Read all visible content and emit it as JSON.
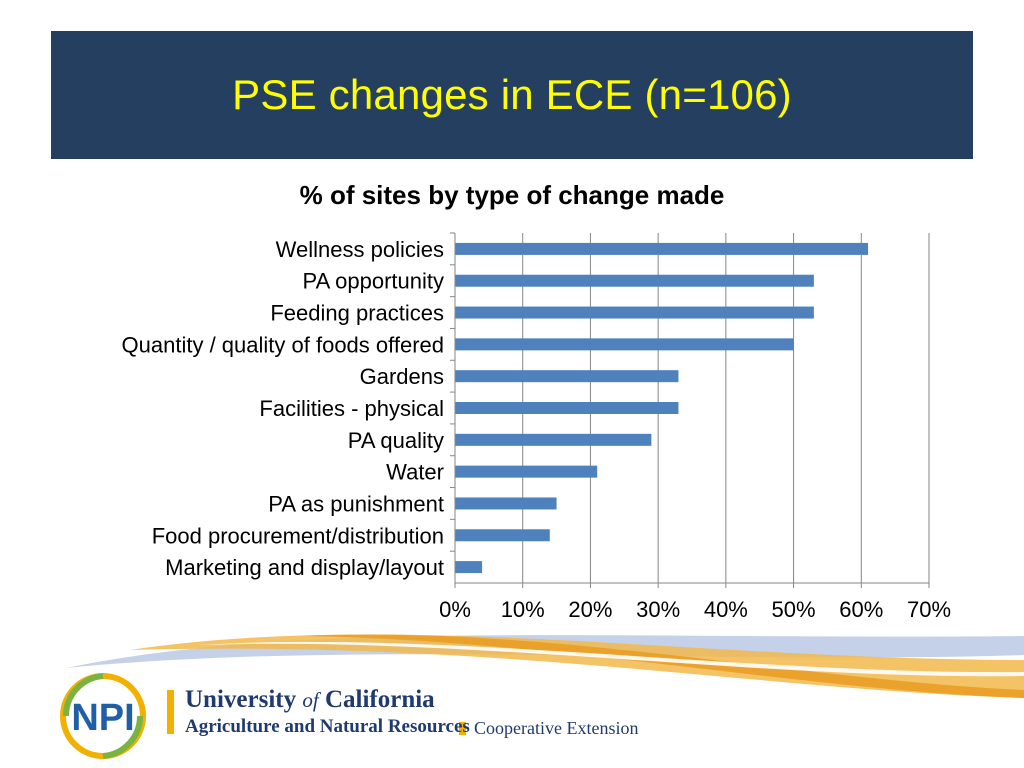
{
  "slide": {
    "title": "PSE changes in ECE (n=106)"
  },
  "colors": {
    "title_band": "#243F60",
    "title_text": "#FFFF00",
    "bar": "#4F81BD",
    "gridline": "#868686",
    "logo_blue": "#1F3A6E",
    "logo_gold": "#F2B000"
  },
  "chart_data": {
    "type": "bar",
    "orientation": "horizontal",
    "title": "% of sites by type of change made",
    "categories": [
      "Wellness policies",
      "PA opportunity",
      "Feeding practices",
      "Quantity / quality of foods offered",
      "Gardens",
      "Facilities - physical",
      "PA quality",
      "Water",
      "PA as punishment",
      "Food procurement/distribution",
      "Marketing and display/layout"
    ],
    "values": [
      0.61,
      0.53,
      0.53,
      0.5,
      0.33,
      0.33,
      0.29,
      0.21,
      0.15,
      0.14,
      0.04
    ],
    "xlim": [
      0,
      0.7
    ],
    "xticks": [
      "0%",
      "10%",
      "20%",
      "30%",
      "40%",
      "50%",
      "60%",
      "70%"
    ],
    "grid": "vertical major gridlines",
    "legend": "none"
  },
  "footer": {
    "npi_logo_text": "NPI",
    "uc_line1_a": "University ",
    "uc_line1_of": "of",
    "uc_line1_b": " California",
    "uc_line2": "Agriculture and Natural Resources",
    "uc_line3": "Cooperative Extension"
  }
}
